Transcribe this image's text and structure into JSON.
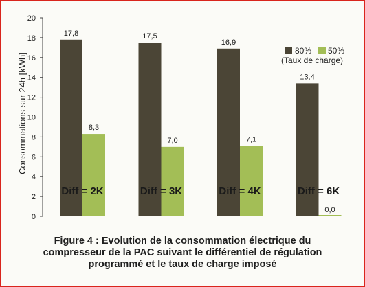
{
  "chart_data": {
    "type": "bar",
    "ylabel": "Consommations sur 24h [kWh]",
    "ylim": [
      0,
      20
    ],
    "yticks": [
      0,
      2,
      4,
      6,
      8,
      10,
      12,
      14,
      16,
      18,
      20
    ],
    "categories": [
      "Diff = 2K",
      "Diff = 3K",
      "Diff = 4K",
      "Diff = 6K"
    ],
    "series": [
      {
        "name": "80%",
        "color": "#4b4536",
        "values": [
          17.8,
          17.5,
          16.9,
          13.4
        ],
        "labels": [
          "17,8",
          "17,5",
          "16,9",
          "13,4"
        ]
      },
      {
        "name": "50%",
        "color": "#a3be56",
        "values": [
          8.3,
          7.0,
          7.1,
          0.0
        ],
        "labels": [
          "8,3",
          "7,0",
          "7,1",
          "0,0"
        ]
      }
    ],
    "legend_note": "(Taux de charge)",
    "legend_position": "top-right",
    "grid": false
  },
  "caption": {
    "line1": "Figure 4 : Evolution de la consommation électrique du",
    "line2": "compresseur de la PAC suivant le différentiel de régulation",
    "line3": "programmé et le taux de charge imposé"
  }
}
